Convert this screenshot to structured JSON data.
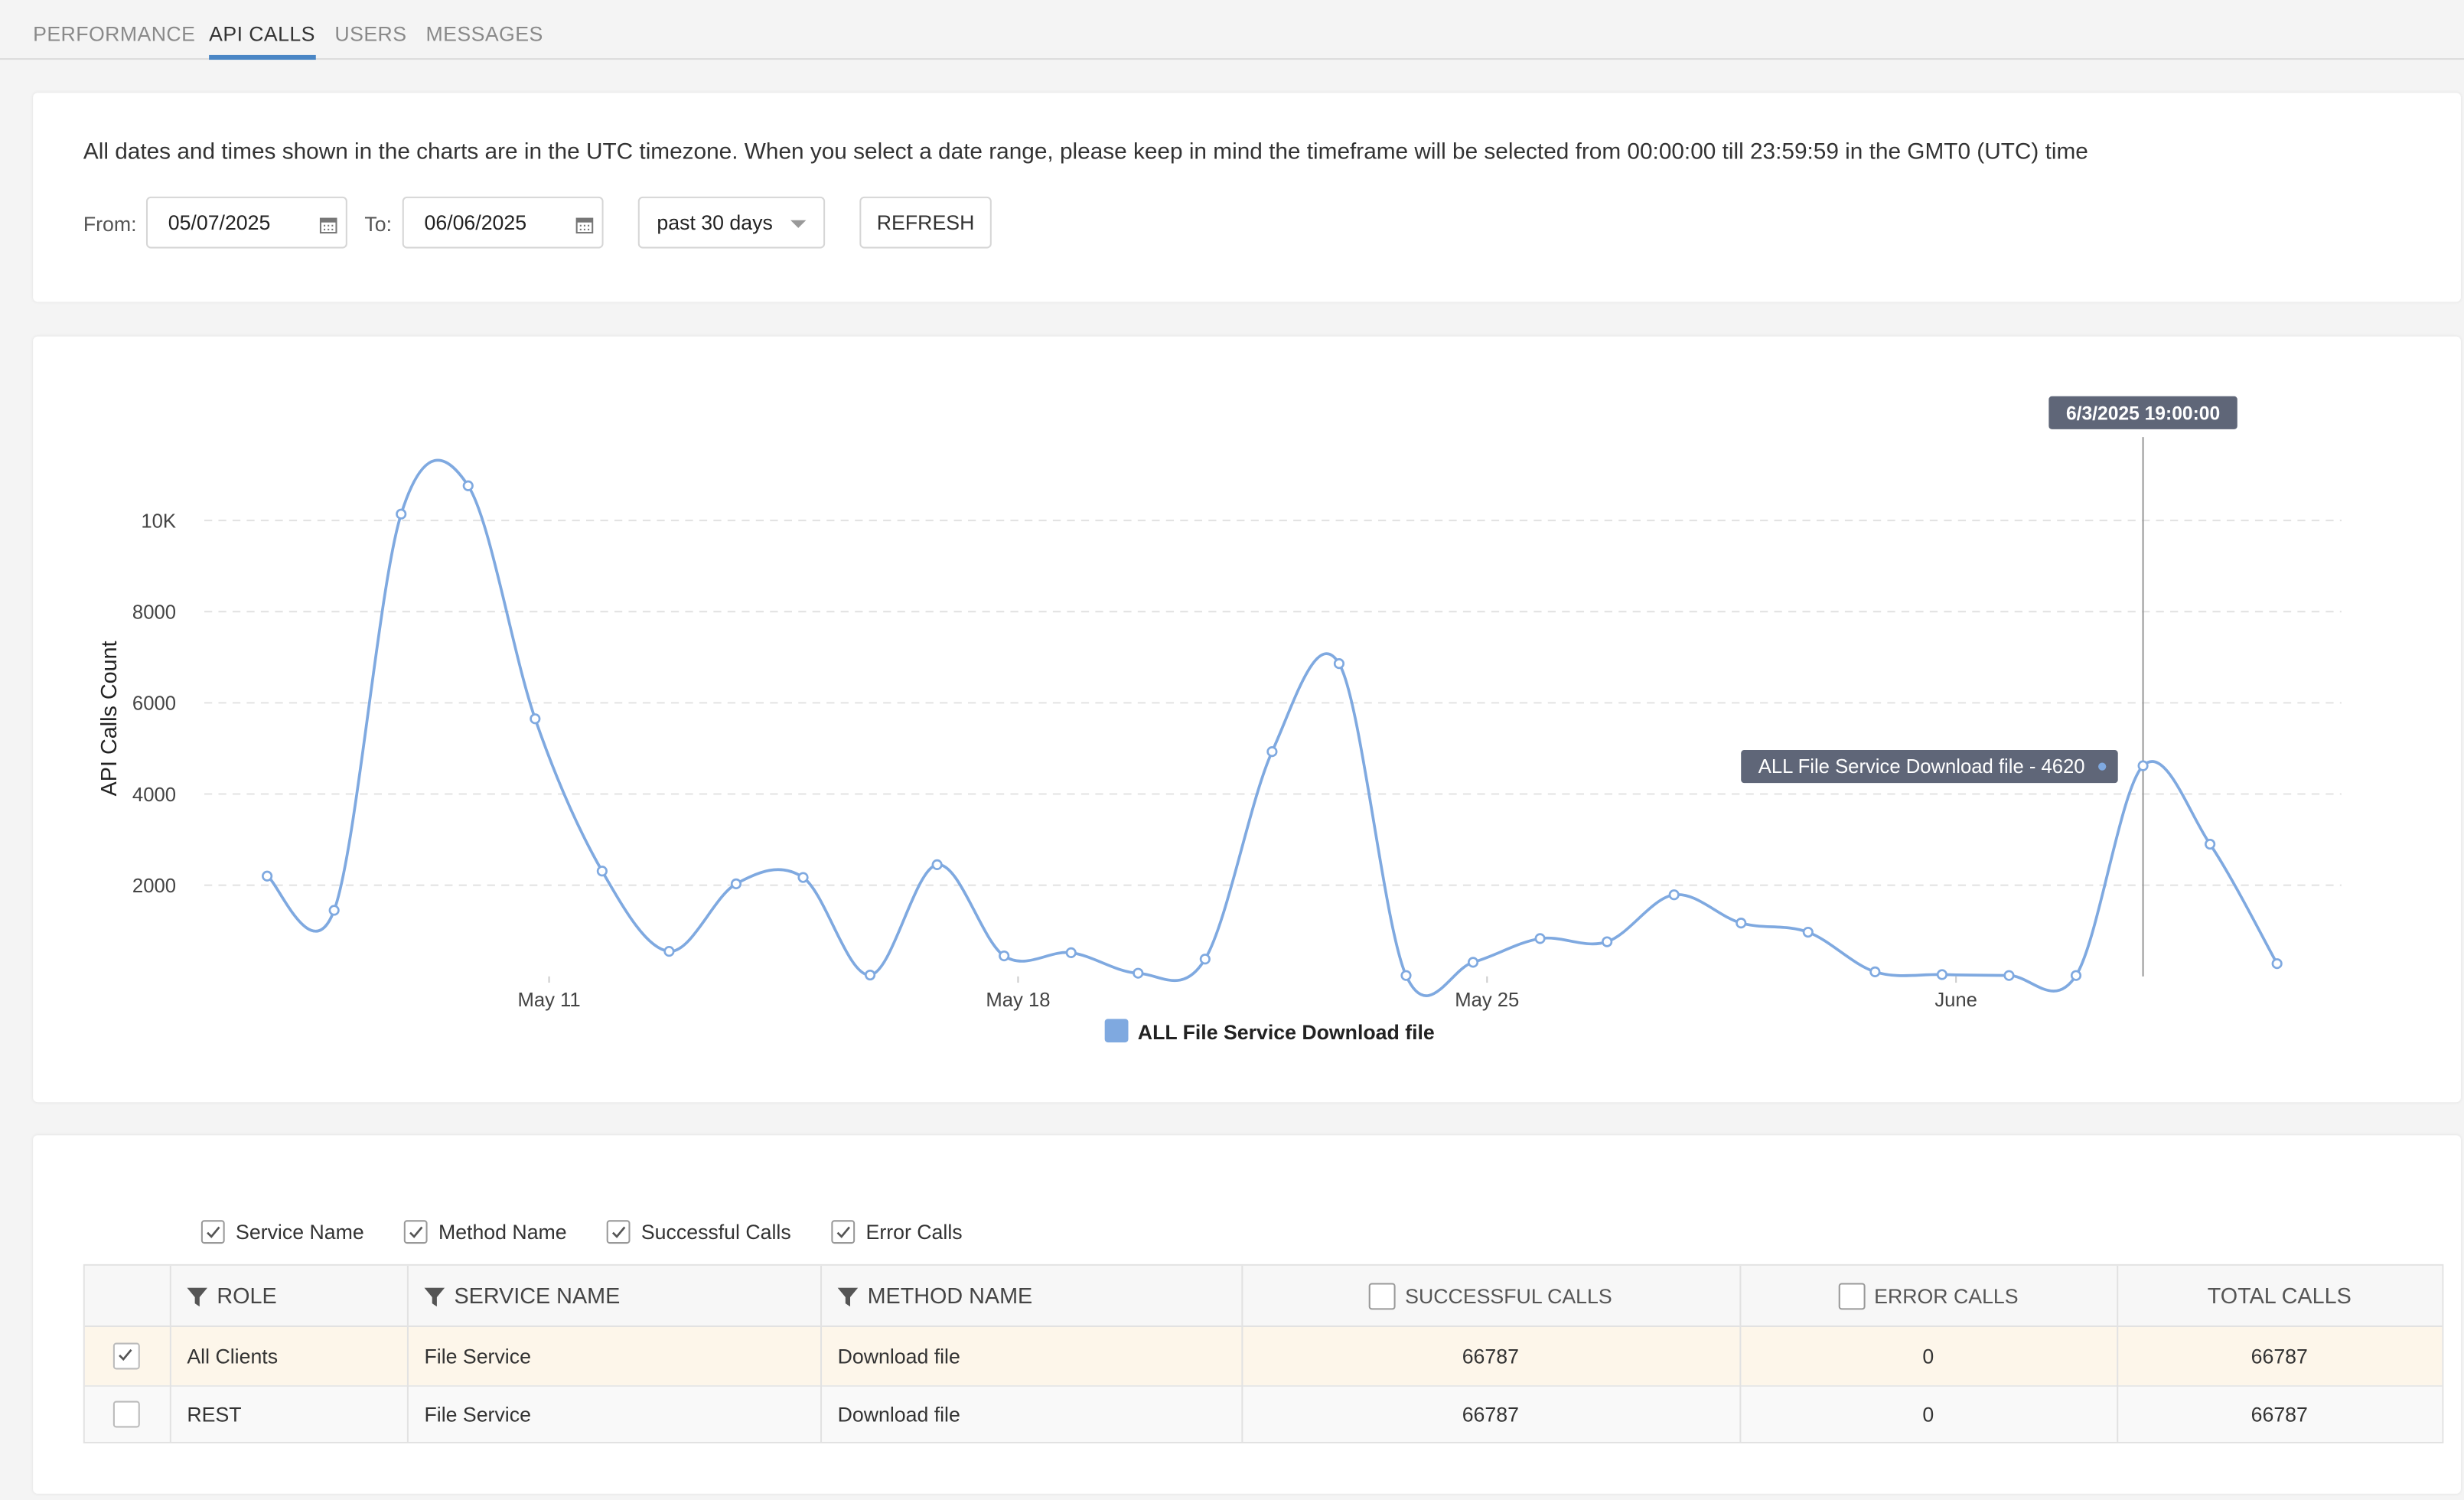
{
  "tabs": {
    "items": [
      "PERFORMANCE",
      "API CALLS",
      "USERS",
      "MESSAGES"
    ],
    "active": 1
  },
  "notice": "All dates and times shown in the charts are in the UTC timezone. When you select a date range, please keep in mind the timeframe will be selected from 00:00:00 till 23:59:59 in the GMT0 (UTC) time",
  "filters": {
    "from_label": "From:",
    "from": "05/07/2025",
    "to_label": "To:",
    "to": "06/06/2025",
    "range": "past 30 days",
    "refresh": "REFRESH"
  },
  "chart_data": {
    "type": "line",
    "y_label": "API Calls Count",
    "x": [
      "2025-05-06T19:00",
      "2025-05-07T19:00",
      "2025-05-08T19:00",
      "2025-05-09T19:00",
      "2025-05-10T19:00",
      "2025-05-11T19:00",
      "2025-05-12T19:00",
      "2025-05-13T19:00",
      "2025-05-14T19:00",
      "2025-05-15T19:00",
      "2025-05-16T19:00",
      "2025-05-17T19:00",
      "2025-05-18T19:00",
      "2025-05-19T19:00",
      "2025-05-20T19:00",
      "2025-05-21T19:00",
      "2025-05-22T19:00",
      "2025-05-23T19:00",
      "2025-05-24T19:00",
      "2025-05-25T19:00",
      "2025-05-26T19:00",
      "2025-05-27T19:00",
      "2025-05-28T19:00",
      "2025-05-29T19:00",
      "2025-05-30T19:00",
      "2025-05-31T19:00",
      "2025-06-01T19:00",
      "2025-06-02T19:00",
      "2025-06-03T19:00",
      "2025-06-04T19:00",
      "2025-06-05T19:00"
    ],
    "series": [
      {
        "name": "ALL File Service Download file",
        "color": "#7fa9e0",
        "values": [
          2200,
          1450,
          10140,
          10760,
          5650,
          2310,
          550,
          2030,
          2170,
          30,
          2450,
          450,
          520,
          70,
          380,
          4930,
          6860,
          20,
          310,
          830,
          760,
          1790,
          1170,
          970,
          100,
          40,
          20,
          20,
          4620,
          2900,
          280
        ]
      }
    ],
    "xlim": [
      "2025-05-06T19:00",
      "2025-06-05T19:00"
    ],
    "xticks": [
      {
        "value": "2025-05-11T00:00",
        "label": "May 11"
      },
      {
        "value": "2025-05-18T00:00",
        "label": "May 18"
      },
      {
        "value": "2025-05-25T00:00",
        "label": "May 25"
      },
      {
        "value": "2025-06-01T00:00",
        "label": "June"
      }
    ],
    "ylim": [
      0,
      11000
    ],
    "yticks": [
      2000,
      4000,
      6000,
      8000,
      {
        "value": 10000,
        "label": "10K"
      }
    ],
    "grid": true,
    "legend": "bottom",
    "tooltip": {
      "index": 28,
      "x_label": "6/3/2025 19:00:00",
      "label": "ALL File Service Download file - 4620"
    }
  },
  "column_toggles": [
    {
      "label": "Service Name",
      "checked": true
    },
    {
      "label": "Method Name",
      "checked": true
    },
    {
      "label": "Successful Calls",
      "checked": true
    },
    {
      "label": "Error Calls",
      "checked": true
    }
  ],
  "table": {
    "columns": [
      "ROLE",
      "SERVICE NAME",
      "METHOD NAME",
      "SUCCESSFUL CALLS",
      "ERROR CALLS",
      "TOTAL CALLS"
    ],
    "rows": [
      [
        "All Clients",
        "File Service",
        "Download file",
        "66787",
        "0",
        "66787"
      ],
      [
        "REST",
        "File Service",
        "Download file",
        "66787",
        "0",
        "66787"
      ]
    ],
    "selected": [
      true,
      false
    ]
  }
}
